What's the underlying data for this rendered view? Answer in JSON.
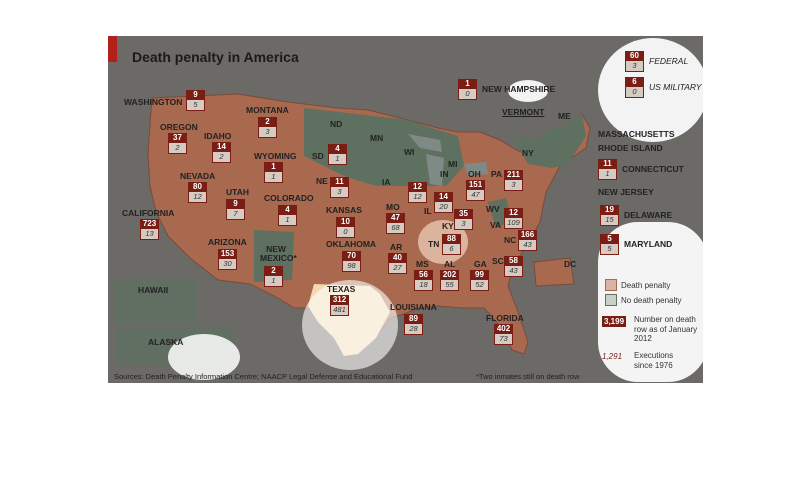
{
  "title": "Death penalty in America",
  "colors": {
    "death_penalty": "#a8694f",
    "no_death_penalty": "#5e7060",
    "badge": "#7a1d14",
    "accent": "#b3201a"
  },
  "states": [
    {
      "name": "WASHINGTON",
      "dr": "9",
      "ex": "5"
    },
    {
      "name": "OREGON",
      "dr": "37",
      "ex": "2"
    },
    {
      "name": "IDAHO",
      "dr": "14",
      "ex": "2"
    },
    {
      "name": "MONTANA",
      "dr": "2",
      "ex": "3"
    },
    {
      "name": "WYOMING",
      "dr": "1",
      "ex": "1"
    },
    {
      "name": "NEVADA",
      "dr": "80",
      "ex": "12"
    },
    {
      "name": "CALIFORNIA",
      "dr": "723",
      "ex": "13"
    },
    {
      "name": "UTAH",
      "dr": "9",
      "ex": "7"
    },
    {
      "name": "ARIZONA",
      "dr": "153",
      "ex": "30"
    },
    {
      "name": "COLORADO",
      "dr": "4",
      "ex": "1"
    },
    {
      "name": "NEW MEXICO*",
      "dr": "2",
      "ex": "1"
    },
    {
      "name": "SD",
      "dr": "4",
      "ex": "1"
    },
    {
      "name": "NE",
      "dr": "11",
      "ex": "3"
    },
    {
      "name": "KANSAS",
      "dr": "10",
      "ex": "0"
    },
    {
      "name": "OKLAHOMA",
      "dr": "70",
      "ex": "98"
    },
    {
      "name": "TEXAS",
      "dr": "312",
      "ex": "481"
    },
    {
      "name": "MO",
      "dr": "47",
      "ex": "68"
    },
    {
      "name": "AR",
      "dr": "40",
      "ex": "27"
    },
    {
      "name": "LOUISIANA",
      "dr": "89",
      "ex": "28"
    },
    {
      "name": "MS",
      "dr": "56",
      "ex": "18"
    },
    {
      "name": "AL",
      "dr": "202",
      "ex": "55"
    },
    {
      "name": "TN",
      "dr": "88",
      "ex": "6"
    },
    {
      "name": "KY",
      "dr": "35",
      "ex": "3"
    },
    {
      "name": "IN",
      "dr": "14",
      "ex": "20"
    },
    {
      "name": "OH",
      "dr": "151",
      "ex": "47"
    },
    {
      "name": "PA",
      "dr": "211",
      "ex": "3"
    },
    {
      "name": "VA",
      "dr": "12",
      "ex": "109"
    },
    {
      "name": "NC",
      "dr": "166",
      "ex": "43"
    },
    {
      "name": "SC",
      "dr": "58",
      "ex": "43"
    },
    {
      "name": "GA",
      "dr": "99",
      "ex": "52"
    },
    {
      "name": "FLORIDA",
      "dr": "402",
      "ex": "73"
    },
    {
      "name": "IL",
      "dr": "12",
      "ex": "12"
    }
  ],
  "no_dp_labels": [
    "ND",
    "MN",
    "WI",
    "MI",
    "IA",
    "NY",
    "WV",
    "ME",
    "VERMONT",
    "HAWAII",
    "ALASKA",
    "DC"
  ],
  "side": [
    {
      "name": "FEDERAL",
      "dr": "60",
      "ex": "3"
    },
    {
      "name": "US MILITARY",
      "dr": "6",
      "ex": "0"
    },
    {
      "name": "NEW HAMPSHIRE",
      "dr": "1",
      "ex": "0"
    },
    {
      "name": "CONNECTICUT",
      "dr": "11",
      "ex": "1"
    },
    {
      "name": "DELAWARE",
      "dr": "19",
      "ex": "15"
    },
    {
      "name": "MARYLAND",
      "dr": "5",
      "ex": "5"
    }
  ],
  "side_labels": [
    "MASSACHUSETTS",
    "RHODE ISLAND",
    "NEW JERSEY"
  ],
  "legend": {
    "death_penalty": "Death penalty",
    "no_death_penalty": "No death penalty",
    "sample_dr": "3,199",
    "dr_text": "Number on death row as of January 2012",
    "sample_ex": "1,291",
    "ex_text": "Executions since 1976"
  },
  "source": "Sources: Death Penalty Information Centre; NAACP Legal Defense and Educational Fund",
  "footnote": "*Two inmates still on death row"
}
